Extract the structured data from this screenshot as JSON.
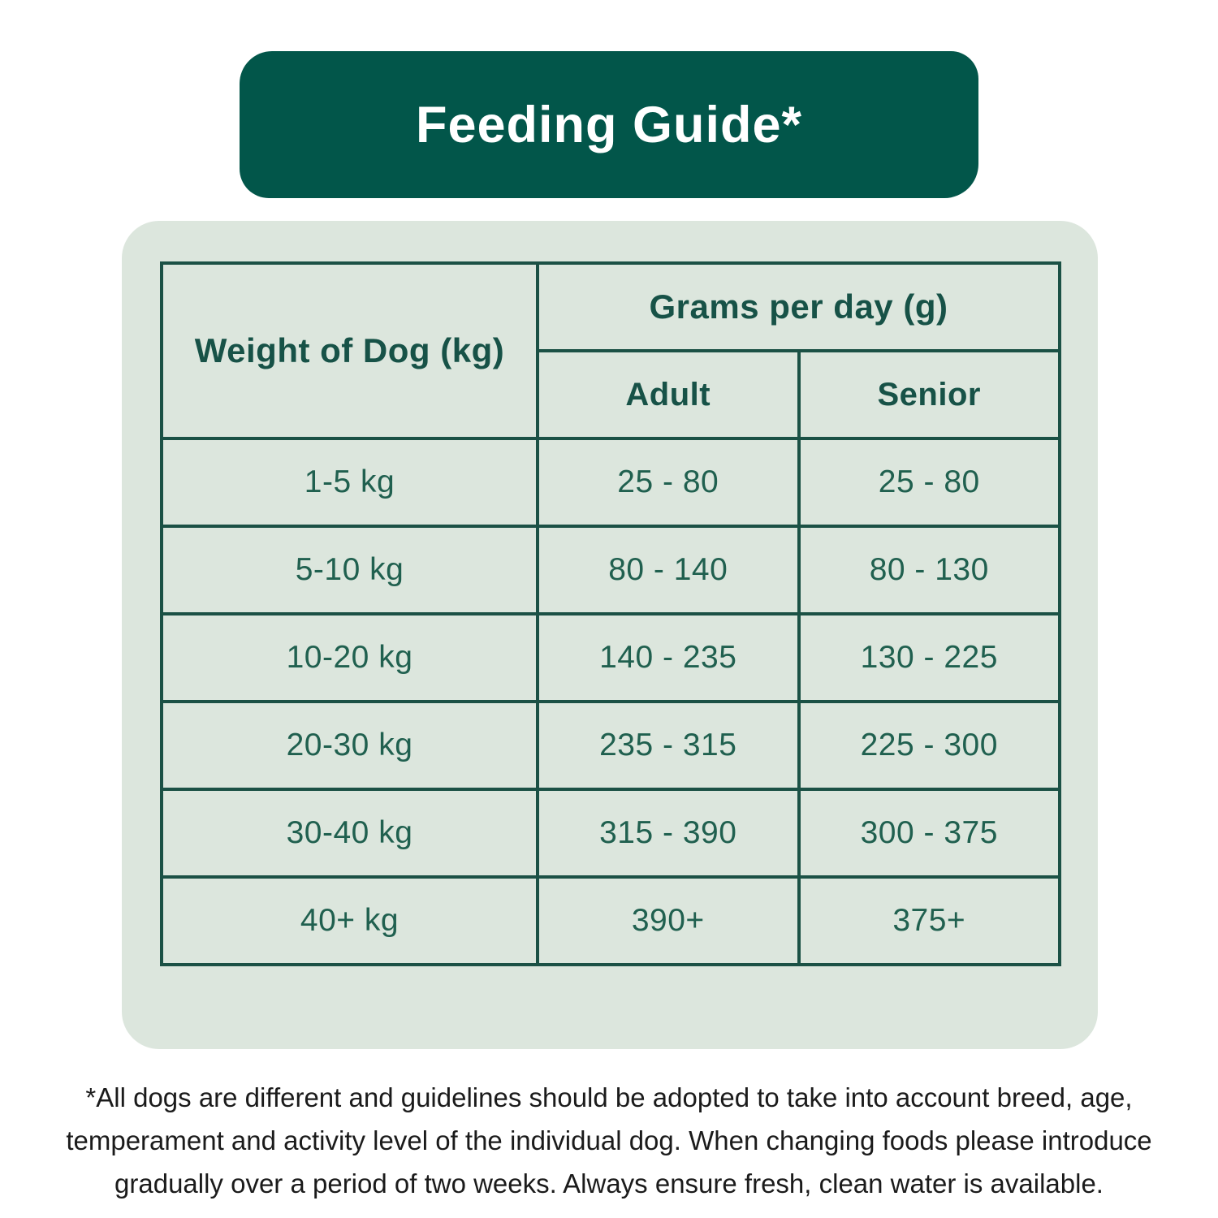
{
  "title": "Feeding Guide*",
  "table": {
    "weight_header": "Weight of Dog (kg)",
    "grams_header": "Grams per day (g)",
    "columns": {
      "adult": "Adult",
      "senior": "Senior"
    },
    "rows": [
      {
        "weight": "1-5 kg",
        "adult": "25 - 80",
        "senior": "25 - 80"
      },
      {
        "weight": "5-10 kg",
        "adult": "80 - 140",
        "senior": "80 - 130"
      },
      {
        "weight": "10-20 kg",
        "adult": "140 - 235",
        "senior": "130 - 225"
      },
      {
        "weight": "20-30 kg",
        "adult": "235 - 315",
        "senior": "225 - 300"
      },
      {
        "weight": "30-40 kg",
        "adult": "315 - 390",
        "senior": "300 - 375"
      },
      {
        "weight": "40+ kg",
        "adult": "390+",
        "senior": "375+"
      }
    ]
  },
  "footnote": {
    "line1": "*All dogs are different and guidelines should be adopted to take into account breed, age,",
    "line2": "temperament and activity level of the individual dog. When changing foods please introduce",
    "line3": "gradually over a period of two weeks. Always ensure fresh, clean water is available."
  },
  "colors": {
    "banner_background": "#02564a",
    "banner_text": "#ffffff",
    "panel_background": "#dce6dd",
    "table_border": "#1b5145",
    "table_header_text": "#175247",
    "table_data_text": "#20604f",
    "footnote_text": "#1b1b1b"
  }
}
